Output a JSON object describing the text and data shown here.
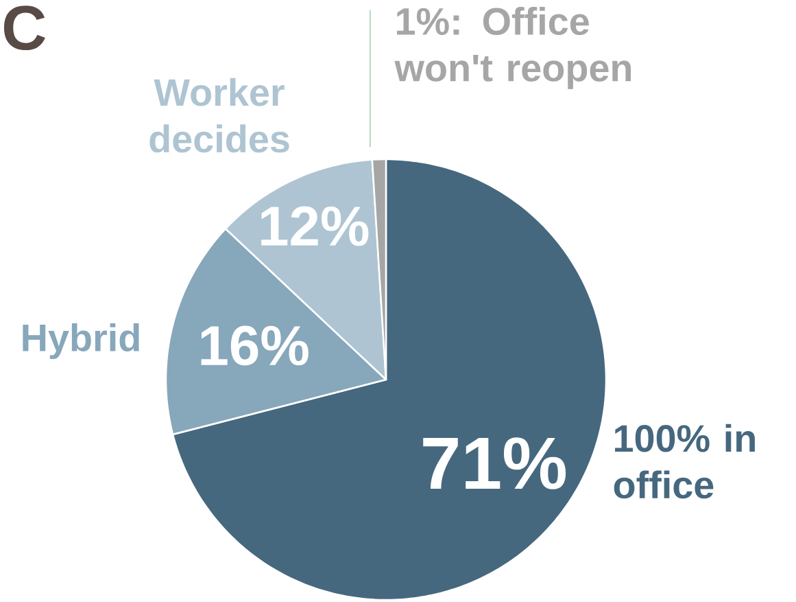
{
  "chart_data": {
    "type": "pie",
    "categories": [
      "100% in office",
      "Hybrid",
      "Worker decides",
      "Office won't reopen"
    ],
    "values": [
      71,
      16,
      12,
      1
    ],
    "colors": [
      "#46687f",
      "#87a7bb",
      "#aec4d2",
      "#a6a6a6"
    ],
    "data_labels": true,
    "value_labels": [
      "71%",
      "16%",
      "12%",
      "1%:"
    ],
    "annotations": [
      "C"
    ]
  }
}
